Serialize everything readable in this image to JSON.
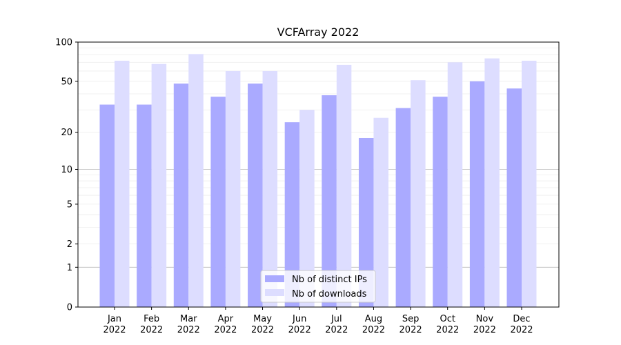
{
  "chart_data": {
    "type": "bar",
    "title": "VCFArray 2022",
    "xlabel": "",
    "ylabel": "",
    "yscale": "log10(v+1)",
    "ylim": [
      0,
      100
    ],
    "yticks": [
      0,
      1,
      2,
      5,
      10,
      20,
      50,
      100
    ],
    "grid": true,
    "legend_position": "bottom-center",
    "categories": [
      [
        "Jan",
        "2022"
      ],
      [
        "Feb",
        "2022"
      ],
      [
        "Mar",
        "2022"
      ],
      [
        "Apr",
        "2022"
      ],
      [
        "May",
        "2022"
      ],
      [
        "Jun",
        "2022"
      ],
      [
        "Jul",
        "2022"
      ],
      [
        "Aug",
        "2022"
      ],
      [
        "Sep",
        "2022"
      ],
      [
        "Oct",
        "2022"
      ],
      [
        "Nov",
        "2022"
      ],
      [
        "Dec",
        "2022"
      ]
    ],
    "series": [
      {
        "name": "Nb of distinct IPs",
        "color": "#aaaaff",
        "values": [
          33,
          33,
          48,
          38,
          48,
          24,
          39,
          18,
          31,
          38,
          50,
          44
        ]
      },
      {
        "name": "Nb of downloads",
        "color": "#ddddff",
        "values": [
          72,
          68,
          81,
          60,
          60,
          30,
          67,
          26,
          51,
          70,
          75,
          72
        ]
      }
    ]
  }
}
